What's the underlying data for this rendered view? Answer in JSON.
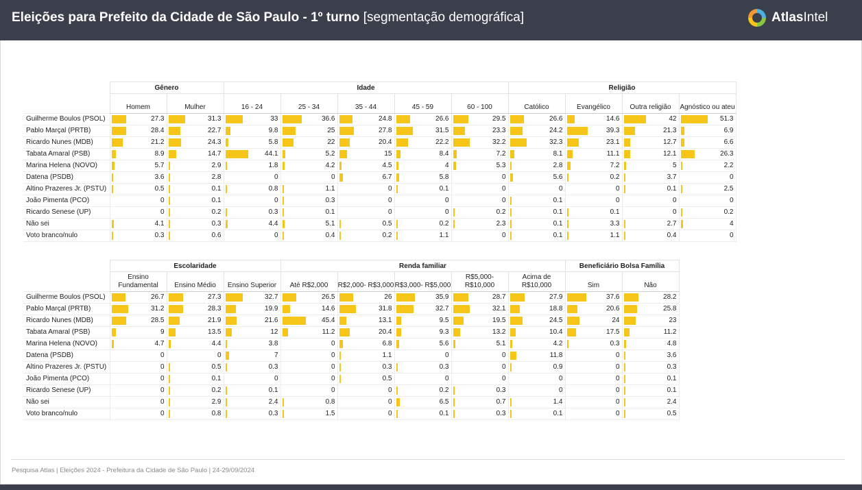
{
  "header": {
    "title_bold": "Eleições para Prefeito da Cidade de São Paulo - 1º turno",
    "title_normal": "[segmentação demográfica]",
    "logo_bold": "Atlas",
    "logo_normal": "Intel",
    "logo_icon": "atlasintel-logo-icon",
    "background_color": "#3a3f4b",
    "bar_color": "#f5c518"
  },
  "candidates": [
    "Guilherme Boulos (PSOL)",
    "Pablo Marçal (PRTB)",
    "Ricardo Nunes (MDB)",
    "Tabata Amaral (PSB)",
    "Marina Helena (NOVO)",
    "Datena (PSDB)",
    "Altino Prazeres Jr. (PSTU)",
    "João Pimenta (PCO)",
    "Ricardo Senese (UP)",
    "Não sei",
    "Voto branco/nulo"
  ],
  "table1": {
    "groups": [
      {
        "name": "Gênero",
        "columns": [
          {
            "label": "Homem",
            "values": [
              27.3,
              28.4,
              21.2,
              8.9,
              5.7,
              3.6,
              0.5,
              0,
              0,
              4.1,
              0.3
            ]
          },
          {
            "label": "Mulher",
            "values": [
              31.3,
              22.7,
              24.3,
              14.7,
              2.9,
              2.8,
              0.1,
              0.1,
              0.2,
              0.3,
              0.6
            ]
          }
        ]
      },
      {
        "name": "Idade",
        "columns": [
          {
            "label": "16 - 24",
            "values": [
              33,
              9.8,
              5.8,
              44.1,
              1.8,
              0,
              0.8,
              0,
              0.3,
              4.4,
              0
            ]
          },
          {
            "label": "25 - 34",
            "values": [
              36.6,
              25,
              22,
              5.2,
              4.2,
              0,
              1.1,
              0.3,
              0.1,
              5.1,
              0.4
            ]
          },
          {
            "label": "35 - 44",
            "values": [
              24.8,
              27.8,
              20.4,
              15,
              4.5,
              6.7,
              0,
              0,
              0,
              0.5,
              0.2
            ]
          },
          {
            "label": "45 - 59",
            "values": [
              26.6,
              31.5,
              22.2,
              8.4,
              4,
              5.8,
              0.1,
              0,
              0,
              0.2,
              1.1
            ]
          },
          {
            "label": "60 - 100",
            "values": [
              29.5,
              23.3,
              32.2,
              7.2,
              5.3,
              0,
              0,
              0,
              0.2,
              2.3,
              0
            ]
          }
        ]
      },
      {
        "name": "Religião",
        "columns": [
          {
            "label": "Católico",
            "values": [
              26.6,
              24.2,
              32.3,
              8.1,
              2.8,
              5.6,
              0,
              0.1,
              0.1,
              0.1,
              0.1
            ]
          },
          {
            "label": "Evangélico",
            "values": [
              14.6,
              39.3,
              23.1,
              11.1,
              7.2,
              0.2,
              0,
              0,
              0.1,
              3.3,
              1.1
            ]
          },
          {
            "label": "Outra religião",
            "values": [
              42,
              21.3,
              12.7,
              12.1,
              5,
              3.7,
              0.1,
              0,
              0,
              2.7,
              0.4
            ]
          },
          {
            "label": "Agnóstico ou ateu",
            "values": [
              51.3,
              6.9,
              6.6,
              26.3,
              2.2,
              0,
              2.5,
              0,
              0.2,
              4,
              0
            ]
          }
        ]
      }
    ]
  },
  "table2": {
    "groups": [
      {
        "name": "Escolaridade",
        "columns": [
          {
            "label": "Ensino Fundamental",
            "values": [
              26.7,
              31.2,
              28.5,
              9,
              4.7,
              0,
              0,
              0,
              0,
              0,
              0
            ]
          },
          {
            "label": "Ensino Médio",
            "values": [
              27.3,
              28.3,
              21.9,
              13.5,
              4.4,
              0,
              0.5,
              0.1,
              0.2,
              2.9,
              0.8
            ]
          },
          {
            "label": "Ensino Superior",
            "values": [
              32.7,
              19.9,
              21.6,
              12,
              3.8,
              7,
              0.3,
              0,
              0.1,
              2.4,
              0.3
            ]
          }
        ]
      },
      {
        "name": "Renda familiar",
        "columns": [
          {
            "label": "Até R$2,000",
            "values": [
              26.5,
              14.6,
              45.4,
              11.2,
              0,
              0,
              0,
              0,
              0,
              0.8,
              1.5
            ]
          },
          {
            "label": "R$2,000- R$3,000",
            "values": [
              26,
              31.8,
              13.1,
              20.4,
              6.8,
              1.1,
              0.3,
              0.5,
              0,
              0,
              0
            ]
          },
          {
            "label": "R$3,000- R$5,000",
            "values": [
              35.9,
              32.7,
              9.5,
              9.3,
              5.6,
              0,
              0.3,
              0,
              0.2,
              6.5,
              0.1
            ]
          },
          {
            "label": "R$5,000- R$10,000",
            "values": [
              28.7,
              32.1,
              19.5,
              13.2,
              5.1,
              0,
              0,
              0,
              0.3,
              0.7,
              0.3
            ]
          },
          {
            "label": "Acima de R$10,000",
            "values": [
              27.9,
              18.8,
              24.5,
              10.4,
              4.2,
              11.8,
              0.9,
              0,
              0,
              1.4,
              0.1
            ]
          }
        ]
      },
      {
        "name": "Beneficiário Bolsa Família",
        "columns": [
          {
            "label": "Sim",
            "values": [
              37.6,
              20.6,
              24,
              17.5,
              0.3,
              0,
              0,
              0,
              0,
              0,
              0
            ]
          },
          {
            "label": "Não",
            "values": [
              28.2,
              25.8,
              23,
              11.2,
              4.8,
              3.6,
              0.3,
              0.1,
              0.1,
              2.4,
              0.5
            ]
          }
        ]
      }
    ]
  },
  "footer": "Pesquisa Atlas | Eleições 2024 - Prefeitura da Cidade de São Paulo | 24-29/09/2024"
}
